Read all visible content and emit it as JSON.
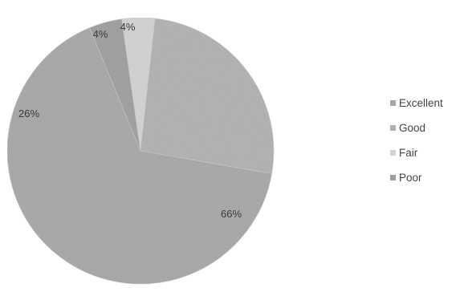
{
  "chart_data": {
    "type": "pie",
    "categories": [
      "Excellent",
      "Good",
      "Fair",
      "Poor"
    ],
    "values": [
      66,
      26,
      4,
      4
    ],
    "labels": [
      "66%",
      "26%",
      "4%",
      "4%"
    ],
    "colors": [
      "#a6a6a6",
      "#b0b0b0",
      "#d2d2d2",
      "#9d9d9d"
    ],
    "legend": "right",
    "title": ""
  }
}
